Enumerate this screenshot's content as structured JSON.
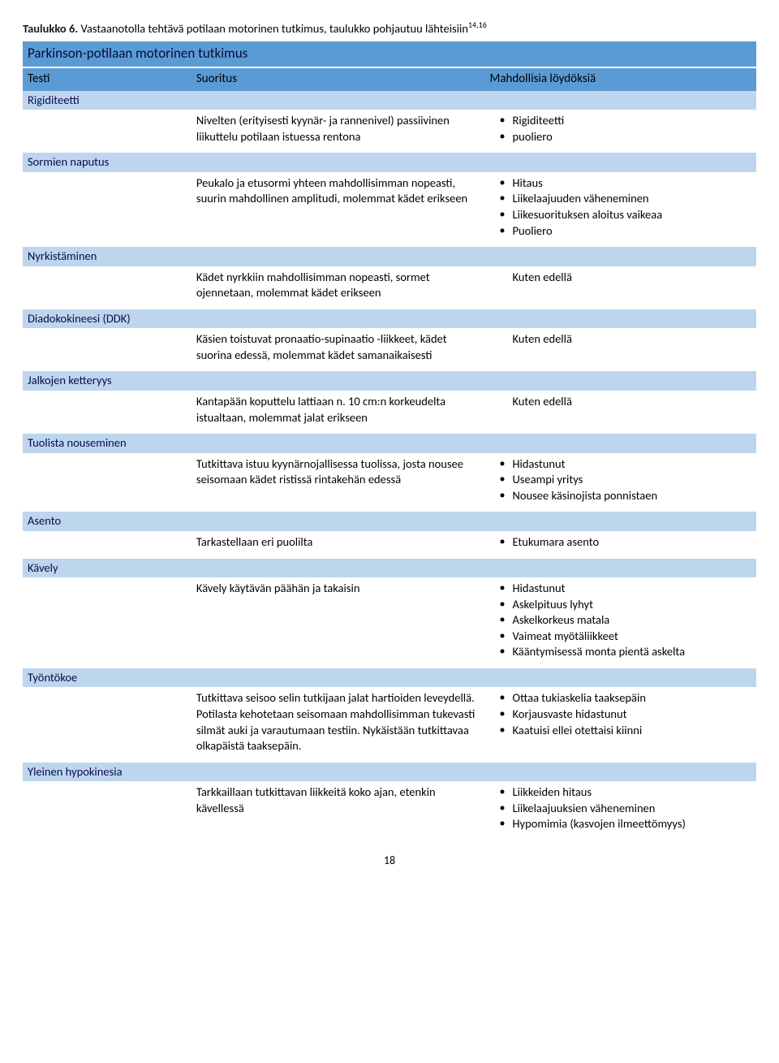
{
  "caption_bold": "Taulukko 6.",
  "caption_rest": " Vastaanotolla tehtävä potilaan motorinen tutkimus, taulukko pohjautuu lähteisiin",
  "caption_sup": "14,16",
  "title": "Parkinson-potilaan motorinen tutkimus",
  "headers": {
    "c1": "Testi",
    "c2": "Suoritus",
    "c3": "Mahdollisia löydöksiä"
  },
  "rows": [
    {
      "section": "Rigiditeetti",
      "suoritus": "Nivelten (erityisesti kyynär- ja rannenivel) passiivinen liikuttelu potilaan istuessa rentona",
      "findings": [
        "Rigiditeetti",
        "puoliero"
      ]
    },
    {
      "section": "Sormien naputus",
      "suoritus": "Peukalo ja etusormi yhteen mahdollisimman nopeasti, suurin mahdollinen amplitudi, molemmat kädet erikseen",
      "findings": [
        "Hitaus",
        "Liikelaajuuden väheneminen",
        "Liikesuorituksen aloitus vaikeaa",
        "Puoliero"
      ]
    },
    {
      "section": "Nyrkistäminen",
      "suoritus": "Kädet nyrkkiin mahdollisimman nopeasti, sormet ojennetaan, molemmat kädet erikseen",
      "plain": "Kuten edellä"
    },
    {
      "section": "Diadokokineesi (DDK)",
      "suoritus": "Käsien toistuvat pronaatio-supinaatio -liikkeet, kädet suorina edessä, molemmat kädet samanaikaisesti",
      "plain": "Kuten edellä"
    },
    {
      "section": "Jalkojen ketteryys",
      "suoritus": "Kantapään koputtelu lattiaan n. 10 cm:n korkeudelta istualtaan, molemmat jalat erikseen",
      "plain": "Kuten edellä"
    },
    {
      "section": "Tuolista nouseminen",
      "suoritus": "Tutkittava istuu kyynärnojallisessa tuolissa, josta nousee seisomaan kädet ristissä rintakehän edessä",
      "findings": [
        "Hidastunut",
        "Useampi yritys",
        "Nousee käsinojista ponnistaen"
      ]
    },
    {
      "section": "Asento",
      "suoritus": "Tarkastellaan eri puolilta",
      "findings": [
        "Etukumara asento"
      ]
    },
    {
      "section": "Kävely",
      "suoritus": "Kävely käytävän päähän ja takaisin",
      "findings": [
        "Hidastunut",
        "Askelpituus lyhyt",
        "Askelkorkeus matala",
        "Vaimeat myötäliikkeet",
        "Kääntymisessä monta pientä askelta"
      ]
    },
    {
      "section": "Työntökoe",
      "suoritus": "Tutkittava seisoo selin tutkijaan jalat hartioiden leveydellä. Potilasta kehotetaan seisomaan mahdollisimman tukevasti silmät auki ja varautumaan testiin. Nykäistään tutkittavaa olkapäistä taaksepäin.",
      "findings": [
        "Ottaa tukiaskelia taaksepäin",
        "Korjausvaste hidastunut",
        "Kaatuisi ellei otettaisi kiinni"
      ]
    },
    {
      "section": "Yleinen hypokinesia",
      "suoritus": "Tarkkaillaan tutkittavan liikkeitä koko ajan, etenkin kävellessä",
      "findings": [
        "Liikkeiden hitaus",
        "Liikelaajuuksien väheneminen",
        "Hypomimia (kasvojen ilmeettömyys)"
      ]
    }
  ],
  "page_number": "18"
}
